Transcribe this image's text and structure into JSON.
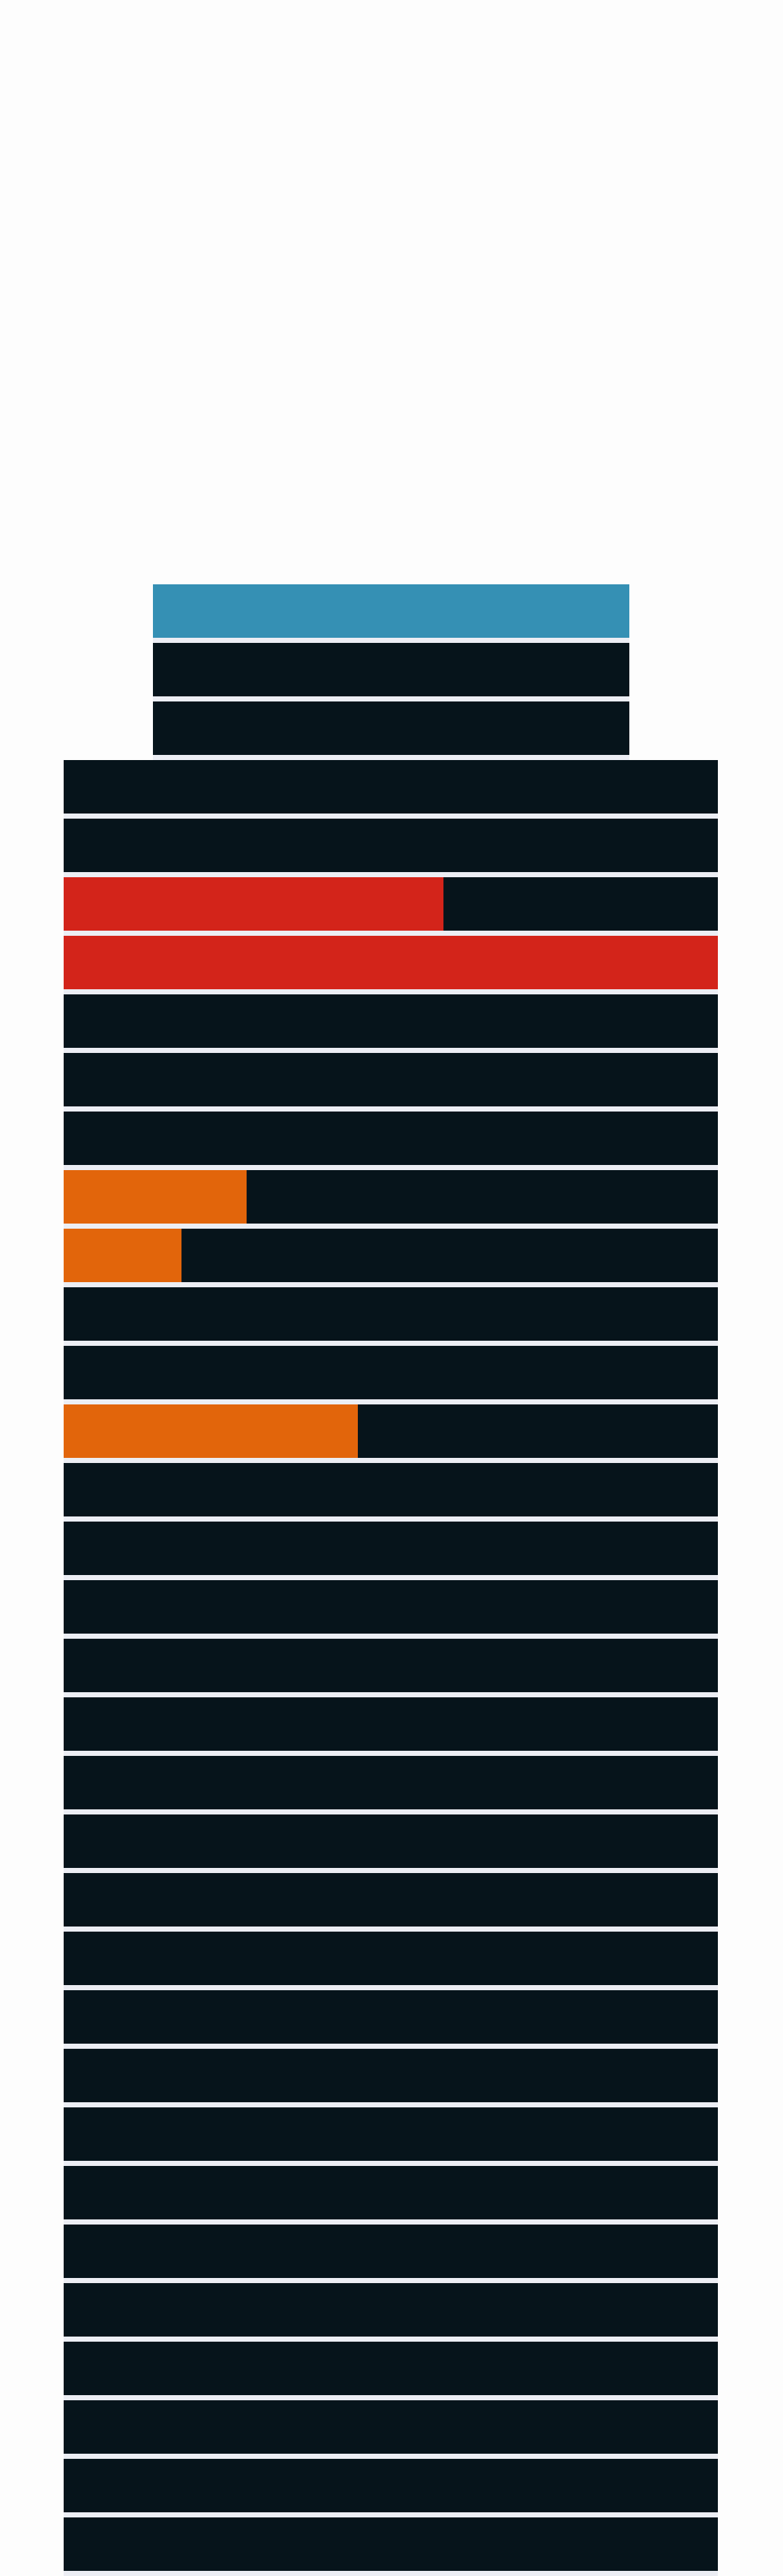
{
  "colors": {
    "background": "#fdfdfd",
    "floor_empty": "#06141b",
    "gap": "#eceef4",
    "crown": "#3590b4",
    "critical": "#d3241a",
    "warning": "#e2650b"
  },
  "tower": {
    "crown_floors": 1,
    "upper_tier_floors": 2,
    "lower_tier_floors": 31,
    "floors": [
      {
        "id": "T1",
        "tier": "upper",
        "status": "crown",
        "fill": 1.0
      },
      {
        "id": "T2",
        "tier": "upper",
        "status": "empty",
        "fill": 0.0
      },
      {
        "id": "T3",
        "tier": "upper",
        "status": "empty",
        "fill": 0.0
      },
      {
        "id": "L1",
        "tier": "lower",
        "status": "empty",
        "fill": 0.0
      },
      {
        "id": "L2",
        "tier": "lower",
        "status": "empty",
        "fill": 0.0
      },
      {
        "id": "L3",
        "tier": "lower",
        "status": "critical",
        "fill": 0.58
      },
      {
        "id": "L4",
        "tier": "lower",
        "status": "critical",
        "fill": 1.0
      },
      {
        "id": "L5",
        "tier": "lower",
        "status": "empty",
        "fill": 0.0
      },
      {
        "id": "L6",
        "tier": "lower",
        "status": "empty",
        "fill": 0.0
      },
      {
        "id": "L7",
        "tier": "lower",
        "status": "empty",
        "fill": 0.0
      },
      {
        "id": "L8",
        "tier": "lower",
        "status": "warning",
        "fill": 0.28
      },
      {
        "id": "L9",
        "tier": "lower",
        "status": "warning",
        "fill": 0.18
      },
      {
        "id": "L10",
        "tier": "lower",
        "status": "empty",
        "fill": 0.0
      },
      {
        "id": "L11",
        "tier": "lower",
        "status": "empty",
        "fill": 0.0
      },
      {
        "id": "L12",
        "tier": "lower",
        "status": "warning",
        "fill": 0.45
      },
      {
        "id": "L13",
        "tier": "lower",
        "status": "empty",
        "fill": 0.0
      },
      {
        "id": "L14",
        "tier": "lower",
        "status": "empty",
        "fill": 0.0
      },
      {
        "id": "L15",
        "tier": "lower",
        "status": "empty",
        "fill": 0.0
      },
      {
        "id": "L16",
        "tier": "lower",
        "status": "empty",
        "fill": 0.0
      },
      {
        "id": "L17",
        "tier": "lower",
        "status": "empty",
        "fill": 0.0
      },
      {
        "id": "L18",
        "tier": "lower",
        "status": "empty",
        "fill": 0.0
      },
      {
        "id": "L19",
        "tier": "lower",
        "status": "empty",
        "fill": 0.0
      },
      {
        "id": "L20",
        "tier": "lower",
        "status": "empty",
        "fill": 0.0
      },
      {
        "id": "L21",
        "tier": "lower",
        "status": "empty",
        "fill": 0.0
      },
      {
        "id": "L22",
        "tier": "lower",
        "status": "empty",
        "fill": 0.0
      },
      {
        "id": "L23",
        "tier": "lower",
        "status": "empty",
        "fill": 0.0
      },
      {
        "id": "L24",
        "tier": "lower",
        "status": "empty",
        "fill": 0.0
      },
      {
        "id": "L25",
        "tier": "lower",
        "status": "empty",
        "fill": 0.0
      },
      {
        "id": "L26",
        "tier": "lower",
        "status": "empty",
        "fill": 0.0
      },
      {
        "id": "L27",
        "tier": "lower",
        "status": "empty",
        "fill": 0.0
      },
      {
        "id": "L28",
        "tier": "lower",
        "status": "empty",
        "fill": 0.0
      },
      {
        "id": "L29",
        "tier": "lower",
        "status": "empty",
        "fill": 0.0
      },
      {
        "id": "L30",
        "tier": "lower",
        "status": "empty",
        "fill": 0.0
      },
      {
        "id": "L31",
        "tier": "lower",
        "status": "empty",
        "fill": 0.0
      }
    ]
  }
}
